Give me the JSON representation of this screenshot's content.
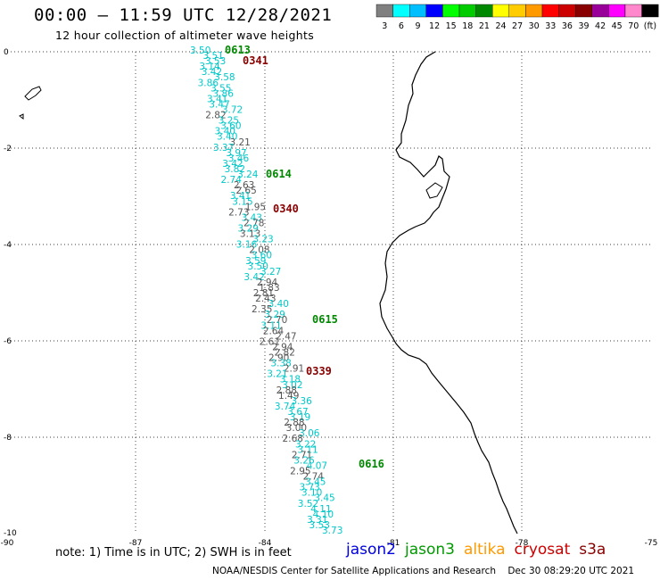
{
  "header": {
    "title": "00:00 – 11:59 UTC 12/28/2021",
    "subtitle": "12 hour collection of altimeter wave heights"
  },
  "color_scale": {
    "labels": [
      "3",
      "6",
      "9",
      "12",
      "15",
      "18",
      "21",
      "24",
      "27",
      "30",
      "33",
      "36",
      "39",
      "42",
      "45",
      "70",
      "(ft)"
    ],
    "colors": [
      "#808080",
      "#00ffff",
      "#00bfff",
      "#0000ff",
      "#00ff00",
      "#00cc00",
      "#008800",
      "#ffff00",
      "#ffcc00",
      "#ff9900",
      "#ff0000",
      "#cc0000",
      "#880000",
      "#990099",
      "#ff00ff",
      "#ff88cc",
      "#000000"
    ]
  },
  "axes": {
    "x_labels": [
      "-90",
      "-87",
      "-84",
      "-81",
      "-78",
      "-75"
    ],
    "y_labels": [
      "0",
      "-2",
      "-4",
      "-6",
      "-8",
      "-10"
    ]
  },
  "observations": {
    "gray_color": "#555555",
    "cyan_color": "#00c8c8",
    "values": [
      [
        "3.50",
        "c"
      ],
      [
        "3.51",
        "c"
      ],
      [
        "3.53",
        "c"
      ],
      [
        "3.14",
        "c"
      ],
      [
        "3.42",
        "c"
      ],
      [
        "3.58",
        "c"
      ],
      [
        "3.86",
        "c"
      ],
      [
        "3.55",
        "c"
      ],
      [
        "3.86",
        "c"
      ],
      [
        "3.41",
        "c"
      ],
      [
        "3.47",
        "c"
      ],
      [
        "3.72",
        "c"
      ],
      [
        "2.82",
        "g"
      ],
      [
        "3.25",
        "c"
      ],
      [
        "3.60",
        "c"
      ],
      [
        "3.40",
        "c"
      ],
      [
        "3.40",
        "c"
      ],
      [
        "3.21",
        "g"
      ],
      [
        "3.37",
        "c"
      ],
      [
        "3.97",
        "c"
      ],
      [
        "3.46",
        "c"
      ],
      [
        "3.42",
        "c"
      ],
      [
        "3.82",
        "c"
      ],
      [
        "3.24",
        "c"
      ],
      [
        "2.74",
        "c"
      ],
      [
        "2.63",
        "g"
      ],
      [
        "2.65",
        "g"
      ],
      [
        "3.41",
        "c"
      ],
      [
        "3.15",
        "c"
      ],
      [
        "1.95",
        "g"
      ],
      [
        "2.73",
        "g"
      ],
      [
        "3.43",
        "c"
      ],
      [
        "2.78",
        "g"
      ],
      [
        "3.29",
        "c"
      ],
      [
        "3.13",
        "g"
      ],
      [
        "3.23",
        "c"
      ],
      [
        "3.16",
        "c"
      ],
      [
        "2.08",
        "g"
      ],
      [
        "3.60",
        "c"
      ],
      [
        "3.59",
        "c"
      ],
      [
        "3.50",
        "c"
      ],
      [
        "3.27",
        "c"
      ],
      [
        "3.42",
        "c"
      ],
      [
        "2.94",
        "g"
      ],
      [
        "1.83",
        "g"
      ],
      [
        "2.81",
        "g"
      ],
      [
        "2.43",
        "g"
      ],
      [
        "3.40",
        "c"
      ],
      [
        "2.35",
        "g"
      ],
      [
        "3.29",
        "c"
      ],
      [
        "2.70",
        "g"
      ],
      [
        "3.11",
        "c"
      ],
      [
        "2.64",
        "g"
      ],
      [
        "2.47",
        "g"
      ],
      [
        "2.61",
        "g"
      ],
      [
        "2.94",
        "g"
      ],
      [
        "2.82",
        "g"
      ],
      [
        "2.90",
        "g"
      ],
      [
        "3.38",
        "c"
      ],
      [
        "2.91",
        "g"
      ],
      [
        "3.21",
        "c"
      ],
      [
        "3.18",
        "c"
      ],
      [
        "3.02",
        "c"
      ],
      [
        "2.88",
        "g"
      ],
      [
        "1.49",
        "g"
      ],
      [
        "3.36",
        "c"
      ],
      [
        "3.74",
        "c"
      ],
      [
        "3.67",
        "c"
      ],
      [
        "3.19",
        "c"
      ],
      [
        "2.88",
        "g"
      ],
      [
        "3.00",
        "g"
      ],
      [
        "3.06",
        "c"
      ],
      [
        "2.68",
        "g"
      ],
      [
        "3.22",
        "c"
      ],
      [
        "3.11",
        "c"
      ],
      [
        "2.71",
        "g"
      ],
      [
        "3.26",
        "c"
      ],
      [
        "4.07",
        "c"
      ],
      [
        "2.95",
        "g"
      ],
      [
        "2.74",
        "g"
      ],
      [
        "3.45",
        "c"
      ],
      [
        "3.73",
        "c"
      ],
      [
        "3.10",
        "c"
      ],
      [
        "3.45",
        "c"
      ],
      [
        "3.52",
        "c"
      ],
      [
        "4.11",
        "c"
      ],
      [
        "4.10",
        "c"
      ],
      [
        "3.31",
        "c"
      ],
      [
        "3.53",
        "c"
      ],
      [
        "3.73",
        "c"
      ]
    ]
  },
  "pass_times": {
    "green_color": "#008800",
    "red_color": "#880000",
    "items": [
      {
        "text": "0613",
        "c": "green"
      },
      {
        "text": "0341",
        "c": "red"
      },
      {
        "text": "0614",
        "c": "green"
      },
      {
        "text": "0340",
        "c": "red"
      },
      {
        "text": "0615",
        "c": "green"
      },
      {
        "text": "0339",
        "c": "red"
      },
      {
        "text": "0616",
        "c": "green"
      }
    ]
  },
  "footer": {
    "note": "note: 1) Time is in UTC; 2) SWH is in feet",
    "credit": "NOAA/NESDIS Center for Satellite Applications and Research    Dec 30 08:29:20 UTC 2021",
    "satellites": [
      {
        "name": "jason2",
        "color": "#0000dd"
      },
      {
        "name": "jason3",
        "color": "#009900"
      },
      {
        "name": "altika",
        "color": "#ff9900"
      },
      {
        "name": "cryosat",
        "color": "#cc0000"
      },
      {
        "name": "s3a",
        "color": "#880000"
      }
    ]
  }
}
